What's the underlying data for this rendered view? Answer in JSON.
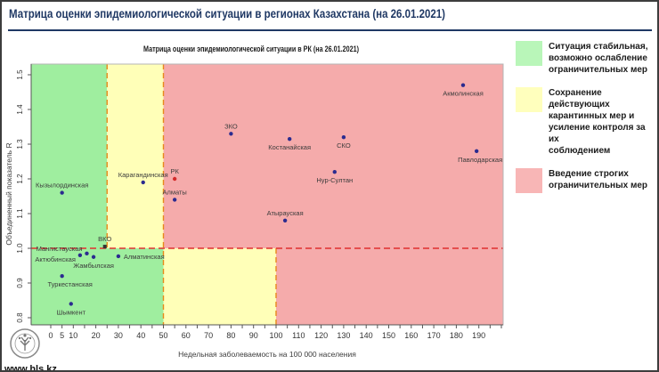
{
  "header": {
    "title": "Матрица оценки эпидемиологической ситуации в регионах Казахстана (на 26.01.2021)"
  },
  "chart_data": {
    "type": "scatter",
    "title": "Матрица оценки эпидемиологической ситуации в РК (на 26.01.2021)",
    "xlabel": "Недельная заболеваемость на 100 000 населения",
    "ylabel": "Объединенный показатель R",
    "xlim": [
      -9,
      201
    ],
    "ylim": [
      0.78,
      1.53
    ],
    "x_ticks": [
      0,
      5,
      10,
      20,
      30,
      40,
      50,
      60,
      70,
      80,
      90,
      100,
      110,
      120,
      130,
      140,
      150,
      160,
      170,
      180,
      190
    ],
    "y_ticks": [
      0.8,
      0.9,
      1.0,
      1.1,
      1.2,
      1.3,
      1.4,
      1.5
    ],
    "grid": false,
    "point_color": "#2b2b8f",
    "zones": {
      "r_threshold": 1.0,
      "upper": {
        "green_max": 25,
        "yellow_max": 50
      },
      "lower": {
        "green_max": 50,
        "yellow_max": 100
      },
      "colors": {
        "green": "#9fee9f",
        "yellow": "#ffffb8",
        "red": "#f5abab"
      }
    },
    "divider_colors": {
      "horizontal": "#e03030",
      "vertical": "#e8891a"
    },
    "points": [
      {
        "name": "Кызылординская",
        "x": 5,
        "r": 1.16,
        "label": "above"
      },
      {
        "name": "Карагандинская",
        "x": 41,
        "r": 1.19,
        "label": "above"
      },
      {
        "name": "РК",
        "x": 55,
        "r": 1.2,
        "label": "above",
        "color": "#d42a2a"
      },
      {
        "name": "Алматы",
        "x": 55,
        "r": 1.14,
        "label": "above"
      },
      {
        "name": "ЗКО",
        "x": 80,
        "r": 1.33,
        "label": "above"
      },
      {
        "name": "Костанайская",
        "x": 106,
        "r": 1.315,
        "label": "below"
      },
      {
        "name": "СКО",
        "x": 130,
        "r": 1.32,
        "label": "below"
      },
      {
        "name": "Нур-Султан",
        "x": 126,
        "r": 1.22,
        "label": "below"
      },
      {
        "name": "Атырауская",
        "x": 104,
        "r": 1.08,
        "label": "above"
      },
      {
        "name": "Акмолинская",
        "x": 183,
        "r": 1.47,
        "label": "below"
      },
      {
        "name": "Павлодарская",
        "x": 189,
        "r": 1.28,
        "label": "below",
        "dx": 4
      },
      {
        "name": "ВКО",
        "x": 24,
        "r": 1.005,
        "label": "above",
        "marker": "square"
      },
      {
        "name": "Мангистауская",
        "x": 16,
        "r": 0.985,
        "label": "left",
        "dy": -6
      },
      {
        "name": "Актюбинская",
        "x": 13,
        "r": 0.98,
        "label": "left",
        "dy": 4
      },
      {
        "name": "Жамбылская",
        "x": 19,
        "r": 0.975,
        "label": "below"
      },
      {
        "name": "Алматинская",
        "x": 30,
        "r": 0.977,
        "label": "right"
      },
      {
        "name": "Туркестанская",
        "x": 5,
        "r": 0.92,
        "label": "below",
        "dx": 9
      },
      {
        "name": "Шымкент",
        "x": 9,
        "r": 0.84,
        "label": "below"
      }
    ]
  },
  "legend": {
    "items": [
      {
        "color": "#b9f6b9",
        "label": "Ситуация стабильная,\nвозможно ослабление\nограничительных мер"
      },
      {
        "color": "#ffffbd",
        "label": "Сохранение действующих\nкарантинных мер и\nусиление контроля за их\nсоблюдением"
      },
      {
        "color": "#f8b6b6",
        "label": "Введение строгих\nограничительных мер"
      }
    ]
  },
  "watermark": {
    "text": "www.hls.kz"
  }
}
